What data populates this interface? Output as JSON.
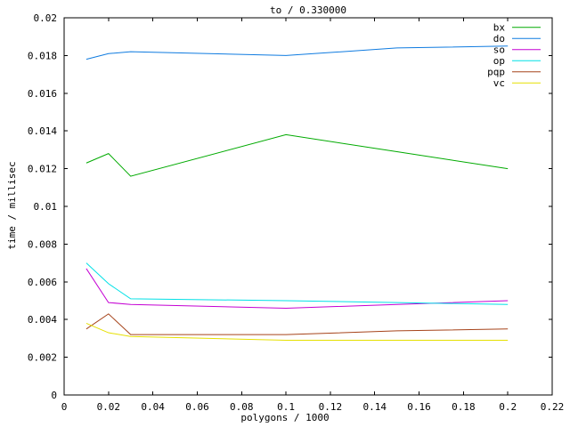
{
  "chart_data": {
    "type": "line",
    "title": "to / 0.330000",
    "xlabel": "polygons / 1000",
    "ylabel": "time / millisec",
    "xlim": [
      0,
      0.22
    ],
    "ylim": [
      0,
      0.02
    ],
    "grid": false,
    "legend_position": "top-right-inside",
    "axis_color": "#000000",
    "background_color": "#ffffff",
    "x": [
      0.01,
      0.02,
      0.03,
      0.1,
      0.15,
      0.2
    ],
    "series": [
      {
        "name": "bx",
        "color": "#00aa00",
        "values": [
          0.0123,
          0.0128,
          0.0116,
          0.0138,
          0.0129,
          0.012
        ]
      },
      {
        "name": "do",
        "color": "#0f7be0",
        "values": [
          0.0178,
          0.0181,
          0.0182,
          0.018,
          0.0184,
          0.0185
        ]
      },
      {
        "name": "so",
        "color": "#c400d3",
        "values": [
          0.0067,
          0.0049,
          0.0048,
          0.0046,
          0.0048,
          0.005
        ]
      },
      {
        "name": "op",
        "color": "#00e0e6",
        "values": [
          0.007,
          0.0059,
          0.0051,
          0.005,
          0.0049,
          0.0048
        ]
      },
      {
        "name": "pqp",
        "color": "#a6431a",
        "values": [
          0.0035,
          0.0043,
          0.0032,
          0.0032,
          0.0034,
          0.0035
        ]
      },
      {
        "name": "vc",
        "color": "#e6e000",
        "values": [
          0.0038,
          0.0033,
          0.0031,
          0.0029,
          0.0029,
          0.0029
        ]
      }
    ],
    "xticks": [
      {
        "v": 0,
        "label": "0"
      },
      {
        "v": 0.02,
        "label": "0.02"
      },
      {
        "v": 0.04,
        "label": "0.04"
      },
      {
        "v": 0.06,
        "label": "0.06"
      },
      {
        "v": 0.08,
        "label": "0.08"
      },
      {
        "v": 0.1,
        "label": "0.1"
      },
      {
        "v": 0.12,
        "label": "0.12"
      },
      {
        "v": 0.14,
        "label": "0.14"
      },
      {
        "v": 0.16,
        "label": "0.16"
      },
      {
        "v": 0.18,
        "label": "0.18"
      },
      {
        "v": 0.2,
        "label": "0.2"
      },
      {
        "v": 0.22,
        "label": "0.22"
      }
    ],
    "yticks": [
      {
        "v": 0,
        "label": "0"
      },
      {
        "v": 0.002,
        "label": "0.002"
      },
      {
        "v": 0.004,
        "label": "0.004"
      },
      {
        "v": 0.006,
        "label": "0.006"
      },
      {
        "v": 0.008,
        "label": "0.008"
      },
      {
        "v": 0.01,
        "label": "0.01"
      },
      {
        "v": 0.012,
        "label": "0.012"
      },
      {
        "v": 0.014,
        "label": "0.014"
      },
      {
        "v": 0.016,
        "label": "0.016"
      },
      {
        "v": 0.018,
        "label": "0.018"
      },
      {
        "v": 0.02,
        "label": "0.02"
      }
    ]
  }
}
